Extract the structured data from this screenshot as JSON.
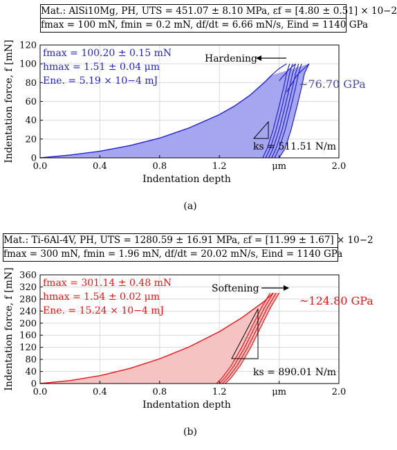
{
  "chart_data": [
    {
      "type": "line",
      "header_line1": "Mat.: AlSi10Mg, PH, UTS = 451.07 ± 8.10 MPa, εf = [4.80 ± 0.51] × 10−2",
      "header_line2": "fmax = 100 mN, fmin = 0.2 mN, df/dt = 6.66 mN/s, Eind = 1140 GPa",
      "xlabel": "Indentation depth",
      "ylabel": "Indentation force, f [mN]",
      "x_unit": "μm",
      "xlim": [
        0,
        2.0
      ],
      "ylim": [
        0,
        120
      ],
      "x_ticks": [
        "0.0",
        "0.4",
        "0.8",
        "1.2",
        "μm",
        "2.0"
      ],
      "x_tick_values": [
        0,
        0.4,
        0.8,
        1.2,
        1.6,
        2.0
      ],
      "y_ticks": [
        "0",
        "20",
        "40",
        "60",
        "80",
        "100",
        "120"
      ],
      "y_tick_values": [
        0,
        20,
        40,
        60,
        80,
        100,
        120
      ],
      "grid": true,
      "color": "#1f1fd6",
      "fill": "#a6a6f0",
      "stats": [
        "fmax = 100.20 ± 0.15 mN",
        "hmax = 1.51 ± 0.04 μm",
        "Ene. = 5.19 × 10−4 mJ"
      ],
      "annotation_text": "Hardening",
      "annotation_direction": "left",
      "modulus_label": "~76.70 GPa",
      "ks_label": "ks = 511.51 N/m",
      "loading_curve": {
        "x": [
          0,
          0.2,
          0.4,
          0.6,
          0.8,
          1.0,
          1.2,
          1.3,
          1.4,
          1.45,
          1.5,
          1.55
        ],
        "y": [
          0,
          3,
          7,
          13,
          21,
          32,
          46,
          55,
          66,
          73,
          80,
          88
        ]
      },
      "unloading_curves": [
        {
          "x": [
            1.49,
            1.52,
            1.56,
            1.6,
            1.63,
            1.65,
            1.67
          ],
          "y": [
            0,
            10,
            30,
            55,
            75,
            90,
            100
          ]
        },
        {
          "x": [
            1.51,
            1.54,
            1.58,
            1.62,
            1.65,
            1.67,
            1.69
          ],
          "y": [
            0,
            10,
            30,
            55,
            75,
            90,
            100
          ]
        },
        {
          "x": [
            1.53,
            1.56,
            1.6,
            1.64,
            1.67,
            1.69,
            1.71
          ],
          "y": [
            0,
            10,
            30,
            55,
            75,
            90,
            100
          ]
        },
        {
          "x": [
            1.55,
            1.58,
            1.62,
            1.66,
            1.69,
            1.71,
            1.73
          ],
          "y": [
            0,
            10,
            30,
            55,
            75,
            90,
            100
          ]
        },
        {
          "x": [
            1.57,
            1.6,
            1.64,
            1.68,
            1.71,
            1.73,
            1.75
          ],
          "y": [
            0,
            10,
            30,
            55,
            75,
            90,
            100
          ]
        },
        {
          "x": [
            1.6,
            1.64,
            1.68,
            1.72,
            1.75,
            1.77,
            1.8
          ],
          "y": [
            0,
            10,
            30,
            55,
            75,
            90,
            100
          ]
        }
      ],
      "reloading_curves": [
        {
          "x": [
            1.55,
            1.6,
            1.65
          ],
          "y": [
            88,
            95,
            100
          ]
        },
        {
          "x": [
            1.6,
            1.66,
            1.71
          ],
          "y": [
            82,
            93,
            100
          ]
        },
        {
          "x": [
            1.65,
            1.72,
            1.8
          ],
          "y": [
            70,
            88,
            100
          ]
        }
      ],
      "caption": "(a)"
    },
    {
      "type": "line",
      "header_line1": "Mat.: Ti-6Al-4V, PH, UTS = 1280.59 ± 16.91 MPa, εf = [11.99 ± 1.67] × 10−2",
      "header_line2": "fmax = 300 mN, fmin = 1.96 mN, df/dt = 20.02 mN/s, Eind = 1140 GPa",
      "xlabel": "Indentation depth",
      "ylabel": "Indentation force, f [mN]",
      "x_unit": "μm",
      "xlim": [
        0,
        2.0
      ],
      "ylim": [
        0,
        360
      ],
      "x_ticks": [
        "0.0",
        "0.4",
        "0.8",
        "1.2",
        "μm",
        "2.0"
      ],
      "x_tick_values": [
        0,
        0.4,
        0.8,
        1.2,
        1.6,
        2.0
      ],
      "y_ticks": [
        "0",
        "40",
        "80",
        "120",
        "160",
        "200",
        "240",
        "280",
        "320",
        "360"
      ],
      "y_tick_values": [
        0,
        40,
        80,
        120,
        160,
        200,
        240,
        280,
        320,
        360
      ],
      "grid": true,
      "color": "#ee1111",
      "fill": "#f6c3c3",
      "stats": [
        "fmax = 301.14 ± 0.48 mN",
        "hmax = 1.54 ± 0.02 μm",
        "Ene. = 15.24 × 10−4 mJ"
      ],
      "annotation_text": "Softening",
      "annotation_direction": "right",
      "modulus_label": "~124.80 GPa",
      "ks_label": "ks = 890.01 N/m",
      "loading_curve": {
        "x": [
          0,
          0.2,
          0.4,
          0.6,
          0.8,
          1.0,
          1.2,
          1.35,
          1.5,
          1.56
        ],
        "y": [
          0,
          10,
          26,
          50,
          82,
          122,
          172,
          218,
          272,
          300
        ]
      },
      "unloading_curves": [
        {
          "x": [
            1.18,
            1.22,
            1.28,
            1.35,
            1.42,
            1.48,
            1.54
          ],
          "y": [
            0,
            20,
            60,
            120,
            190,
            250,
            300
          ]
        },
        {
          "x": [
            1.2,
            1.24,
            1.3,
            1.37,
            1.44,
            1.5,
            1.56
          ],
          "y": [
            0,
            20,
            60,
            120,
            190,
            250,
            300
          ]
        },
        {
          "x": [
            1.22,
            1.26,
            1.32,
            1.39,
            1.46,
            1.52,
            1.58
          ],
          "y": [
            0,
            20,
            60,
            120,
            190,
            250,
            300
          ]
        },
        {
          "x": [
            1.24,
            1.28,
            1.34,
            1.41,
            1.48,
            1.54,
            1.6
          ],
          "y": [
            0,
            20,
            60,
            120,
            190,
            250,
            300
          ]
        }
      ],
      "reloading_curves": [],
      "caption": "(b)"
    }
  ]
}
